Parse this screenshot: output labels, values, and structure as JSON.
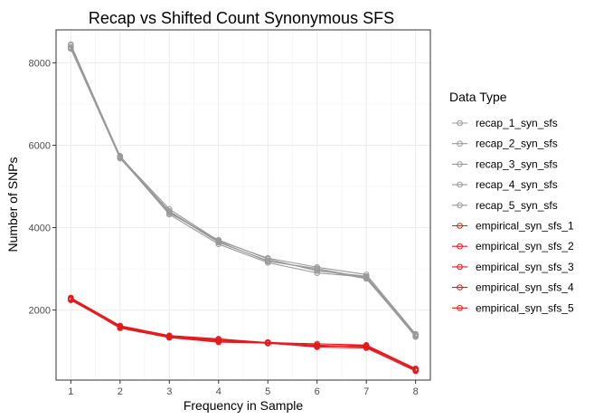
{
  "chart_data": {
    "type": "line",
    "title": "Recap vs Shifted Count Synonymous SFS",
    "xlabel": "Frequency in Sample",
    "ylabel": "Number of SNPs",
    "x": [
      1,
      2,
      3,
      4,
      5,
      6,
      7,
      8
    ],
    "xlim": [
      0.7,
      8.3
    ],
    "ylim": [
      300,
      8800
    ],
    "x_ticks": [
      "1",
      "2",
      "3",
      "4",
      "5",
      "6",
      "7",
      "8"
    ],
    "y_ticks": [
      2000,
      4000,
      6000,
      8000
    ],
    "y_tick_labels": [
      "2000",
      "4000",
      "6000",
      "8000"
    ],
    "grid": true,
    "legend_position": "right",
    "legend_title": "Data Type",
    "colors": {
      "recap": "#999999",
      "empirical": "#e31a1c"
    },
    "series": [
      {
        "name": "recap_1_syn_sfs",
        "group": "recap",
        "values": [
          8450,
          5720,
          4450,
          3680,
          3260,
          3040,
          2860,
          1420
        ]
      },
      {
        "name": "recap_2_syn_sfs",
        "group": "recap",
        "values": [
          8380,
          5700,
          4320,
          3600,
          3150,
          2900,
          2800,
          1360
        ]
      },
      {
        "name": "recap_3_syn_sfs",
        "group": "recap",
        "values": [
          8340,
          5680,
          4380,
          3640,
          3200,
          2980,
          2760,
          1380
        ]
      },
      {
        "name": "recap_4_syn_sfs",
        "group": "recap",
        "values": [
          8420,
          5740,
          4350,
          3700,
          3240,
          2950,
          2820,
          1400
        ]
      },
      {
        "name": "recap_5_syn_sfs",
        "group": "recap",
        "values": [
          8360,
          5710,
          4400,
          3660,
          3180,
          3010,
          2780,
          1350
        ]
      },
      {
        "name": "empirical_syn_sfs_1",
        "group": "empirical",
        "values": [
          2300,
          1620,
          1380,
          1300,
          1210,
          1180,
          1150,
          580
        ]
      },
      {
        "name": "empirical_syn_sfs_2",
        "group": "empirical",
        "values": [
          2260,
          1560,
          1330,
          1220,
          1200,
          1100,
          1080,
          520
        ]
      },
      {
        "name": "empirical_syn_sfs_3",
        "group": "empirical",
        "values": [
          2280,
          1600,
          1360,
          1260,
          1190,
          1130,
          1120,
          540
        ]
      },
      {
        "name": "empirical_syn_sfs_4",
        "group": "empirical",
        "values": [
          2240,
          1580,
          1340,
          1240,
          1220,
          1150,
          1100,
          560
        ]
      },
      {
        "name": "empirical_syn_sfs_5",
        "group": "empirical",
        "values": [
          2270,
          1610,
          1370,
          1280,
          1200,
          1120,
          1140,
          550
        ]
      }
    ]
  }
}
